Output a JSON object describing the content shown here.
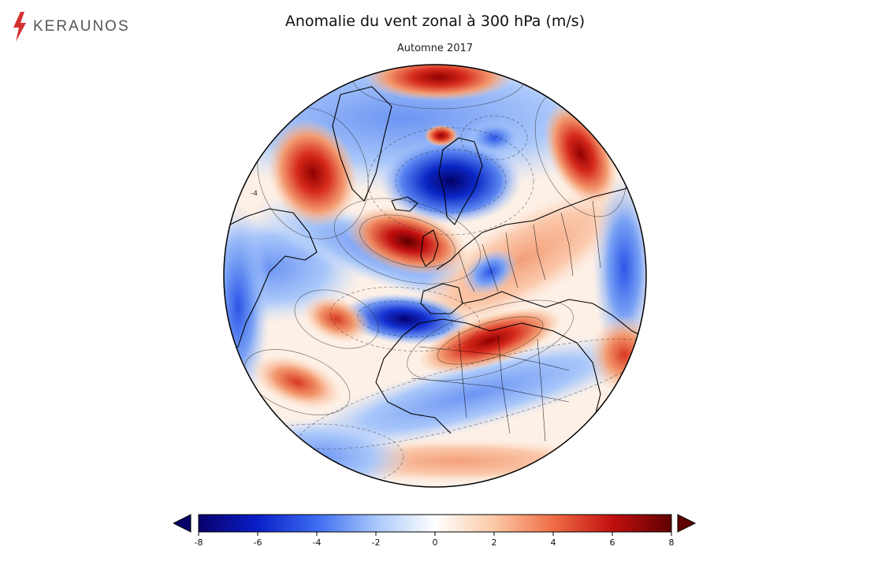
{
  "brand": {
    "name": "KERAUNOS",
    "icon": "lightning-bolt-icon",
    "color": "#d32f2f"
  },
  "title": "Anomalie du vent zonal à 300 hPa (m/s)",
  "subtitle": "Automne 2017",
  "map": {
    "projection": "orthographic",
    "center": "Atlantique Nord / Europe",
    "variable": "Anomalie du vent zonal à 300 hPa",
    "units": "m/s",
    "contour_lines": "dashed for negative values, solid for positive values",
    "anomalies": [
      {
        "region": "Pôle Nord / mer de Barents",
        "sign": "negative",
        "approx_value": -8
      },
      {
        "region": "Atlantique Nord, ouest des îles Britanniques",
        "sign": "positive",
        "approx_value": 8
      },
      {
        "region": "Atlantique subtropical, ouest de l'Afrique du Nord",
        "sign": "negative",
        "approx_value": -8
      },
      {
        "region": "Afrique du Nord / Méditerranée",
        "sign": "positive",
        "approx_value": 7
      },
      {
        "region": "Groenland / Canada arctique",
        "sign": "positive",
        "approx_value": 6
      },
      {
        "region": "Sibérie",
        "sign": "positive",
        "approx_value": 5
      },
      {
        "region": "Atlantique central",
        "sign": "positive",
        "approx_value": 4
      },
      {
        "region": "Atlantique tropical ouest",
        "sign": "positive",
        "approx_value": 4
      },
      {
        "region": "Atlantique Sud",
        "sign": "positive",
        "approx_value": 4
      },
      {
        "region": "Afrique équatoriale",
        "sign": "negative",
        "approx_value": -3
      }
    ],
    "contour_label": "-4"
  },
  "colorbar": {
    "min": -8,
    "max": 8,
    "ticks": [
      "-8",
      "-6",
      "-4",
      "-2",
      "0",
      "2",
      "4",
      "6",
      "8"
    ],
    "stops": [
      "#08006b",
      "#0a1fc8",
      "#3d6cf0",
      "#a8c8fb",
      "#ffffff",
      "#fcc9a5",
      "#ef6d45",
      "#c20f0f",
      "#600000"
    ],
    "extend": "both"
  }
}
